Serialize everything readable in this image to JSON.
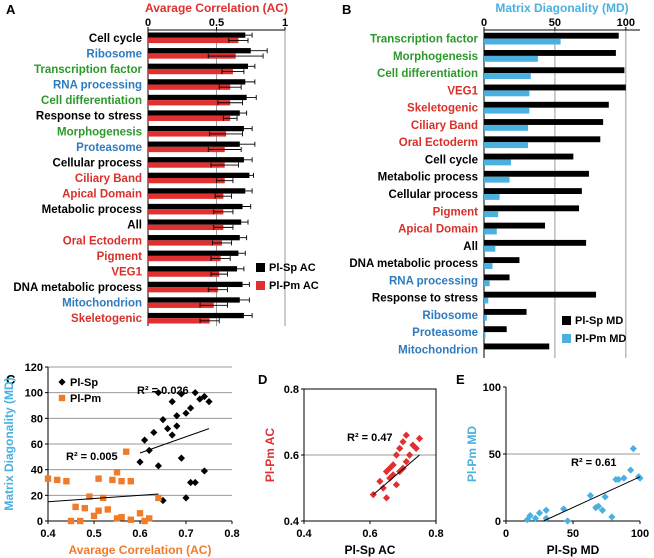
{
  "colors": {
    "black": "#000000",
    "red": "#e0302f",
    "blue": "#49b0e0",
    "orange": "#f07c2a",
    "green": "#2b9a2b",
    "catBlue": "#2e7bbf",
    "catRed": "#d9302a",
    "grid": "#9a9a9a"
  },
  "chart_data": [
    {
      "panel": "A",
      "type": "bar",
      "orientation": "horizontal",
      "xlabel": "Avarage Correlation (AC)",
      "xlim": [
        0,
        1
      ],
      "xticks": [
        "0",
        "0.5",
        "1"
      ],
      "categories": [
        "Cell cycle",
        "Ribosome",
        "Transcription factor",
        "RNA processing",
        "Cell differentiation",
        "Response to stress",
        "Morphogenesis",
        "Proteasome",
        "Cellular process",
        "Ciliary Band",
        "Apical Domain",
        "Metabolic process",
        "All",
        "Oral Ectoderm",
        "Pigment",
        "VEG1",
        "DNA metabolic process",
        "Mitochondrion",
        "Skeletogenic"
      ],
      "category_colors": [
        "black",
        "catBlue",
        "green",
        "catBlue",
        "green",
        "black",
        "green",
        "catBlue",
        "black",
        "catRed",
        "catRed",
        "black",
        "black",
        "catRed",
        "catRed",
        "catRed",
        "black",
        "catBlue",
        "catRed"
      ],
      "series": [
        {
          "name": "Pl-Sp AC",
          "color": "black",
          "values": [
            0.71,
            0.75,
            0.73,
            0.71,
            0.72,
            0.67,
            0.7,
            0.67,
            0.7,
            0.74,
            0.71,
            0.69,
            0.68,
            0.67,
            0.66,
            0.65,
            0.69,
            0.67,
            0.7
          ],
          "errors": [
            0.05,
            0.12,
            0.05,
            0.07,
            0.07,
            0.05,
            0.06,
            0.11,
            0.06,
            0.03,
            0.05,
            0.06,
            0.05,
            0.05,
            0.05,
            0.05,
            0.05,
            0.07,
            0.06
          ]
        },
        {
          "name": "Pl-Pm AC",
          "color": "red",
          "values": [
            0.66,
            0.64,
            0.62,
            0.6,
            0.6,
            0.6,
            0.57,
            0.56,
            0.56,
            0.56,
            0.55,
            0.55,
            0.55,
            0.54,
            0.53,
            0.52,
            0.51,
            0.48,
            0.45
          ],
          "errors": [
            0.07,
            0.2,
            0.08,
            0.08,
            0.09,
            0.05,
            0.12,
            0.12,
            0.1,
            0.06,
            0.06,
            0.07,
            0.07,
            0.07,
            0.07,
            0.06,
            0.07,
            0.1,
            0.07
          ]
        }
      ],
      "legend": "bottom-right"
    },
    {
      "panel": "B",
      "type": "bar",
      "orientation": "horizontal",
      "xlabel": "Matrix Diagonality (MD)",
      "xlim": [
        0,
        110
      ],
      "xticks": [
        "0",
        "50",
        "100"
      ],
      "categories": [
        "Transcription factor",
        "Morphogenesis",
        "Cell differentiation",
        "VEG1",
        "Skeletogenic",
        "Ciliary Band",
        "Oral Ectoderm",
        "Cell cycle",
        "Metabolic process",
        "Cellular process",
        "Pigment",
        "Apical Domain",
        "All",
        "DNA metabolic process",
        "RNA processing",
        "Response to stress",
        "Ribosome",
        "Proteasome",
        "Mitochondrion"
      ],
      "category_colors": [
        "green",
        "green",
        "green",
        "catRed",
        "catRed",
        "catRed",
        "catRed",
        "black",
        "black",
        "black",
        "catRed",
        "catRed",
        "black",
        "black",
        "catBlue",
        "black",
        "catBlue",
        "catBlue",
        "catBlue"
      ],
      "series": [
        {
          "name": "Pl-Sp MD",
          "color": "black",
          "values": [
            95,
            93,
            99,
            100,
            88,
            84,
            82,
            63,
            74,
            69,
            67,
            43,
            72,
            25,
            18,
            79,
            30,
            16,
            46
          ]
        },
        {
          "name": "Pl-Pm MD",
          "color": "blue",
          "values": [
            54,
            38,
            33,
            32,
            32,
            31,
            31,
            19,
            18,
            11,
            10,
            9,
            8,
            6,
            4,
            3,
            2,
            1,
            0
          ]
        }
      ],
      "legend": "bottom-right"
    },
    {
      "panel": "C",
      "type": "scatter",
      "xlabel": "Avarage Correlation (AC)",
      "ylabel": "Matrix Diagonality (MD)",
      "xlim": [
        0.4,
        0.8
      ],
      "ylim": [
        0,
        120
      ],
      "xticks": [
        "0.4",
        "0.5",
        "0.6",
        "0.7",
        "0.8"
      ],
      "yticks": [
        "0",
        "20",
        "40",
        "60",
        "80",
        "100",
        "120"
      ],
      "series": [
        {
          "name": "Pl-Sp",
          "color": "black",
          "marker": "diamond",
          "x": [
            0.64,
            0.65,
            0.67,
            0.68,
            0.69,
            0.7,
            0.71,
            0.72,
            0.73,
            0.74,
            0.75,
            0.6,
            0.61,
            0.62,
            0.63,
            0.64,
            0.66,
            0.67,
            0.68,
            0.69,
            0.7,
            0.71,
            0.72,
            0.74,
            0.65
          ],
          "y": [
            100,
            79,
            93,
            82,
            99,
            84,
            88,
            100,
            95,
            97,
            93,
            46,
            63,
            55,
            69,
            43,
            72,
            67,
            74,
            49,
            18,
            30,
            30,
            39,
            16
          ],
          "trend": {
            "x": [
              0.6,
              0.75
            ],
            "y": [
              53,
              72
            ]
          },
          "r2_label": "R² = 0.026"
        },
        {
          "name": "Pl-Pm",
          "color": "orange",
          "marker": "square",
          "x": [
            0.4,
            0.42,
            0.44,
            0.45,
            0.46,
            0.48,
            0.49,
            0.5,
            0.51,
            0.52,
            0.53,
            0.54,
            0.55,
            0.56,
            0.57,
            0.58,
            0.6,
            0.62,
            0.64,
            0.47,
            0.51,
            0.55,
            0.56,
            0.58,
            0.61
          ],
          "y": [
            33,
            32,
            31,
            0,
            11,
            10,
            19,
            4,
            8,
            18,
            9,
            32,
            38,
            3,
            54,
            1,
            6,
            2,
            18,
            0,
            33,
            2,
            31,
            31,
            0
          ],
          "trend": {
            "x": [
              0.4,
              0.64
            ],
            "y": [
              15,
              21
            ]
          },
          "r2_label": "R² = 0.005"
        }
      ],
      "legend": "top-left"
    },
    {
      "panel": "D",
      "type": "scatter",
      "xlabel": "Pl-Sp AC",
      "ylabel": "Pl-Pm AC",
      "xlim": [
        0.4,
        0.8
      ],
      "ylim": [
        0.4,
        0.8
      ],
      "xticks": [
        "0.4",
        "0.6",
        "0.8"
      ],
      "yticks": [
        "0.4",
        "0.6",
        "0.8"
      ],
      "series": [
        {
          "name": "",
          "color": "red",
          "marker": "diamond",
          "x": [
            0.61,
            0.63,
            0.64,
            0.65,
            0.66,
            0.66,
            0.67,
            0.67,
            0.68,
            0.68,
            0.69,
            0.69,
            0.7,
            0.7,
            0.71,
            0.71,
            0.72,
            0.73,
            0.74,
            0.75,
            0.65
          ],
          "y": [
            0.48,
            0.52,
            0.5,
            0.55,
            0.53,
            0.56,
            0.54,
            0.57,
            0.51,
            0.6,
            0.55,
            0.62,
            0.56,
            0.64,
            0.58,
            0.66,
            0.6,
            0.63,
            0.62,
            0.65,
            0.47
          ],
          "trend": {
            "x": [
              0.61,
              0.75
            ],
            "y": [
              0.48,
              0.6
            ]
          },
          "r2_label": "R² = 0.47"
        }
      ]
    },
    {
      "panel": "E",
      "type": "scatter",
      "xlabel": "Pl-Sp MD",
      "ylabel": "Pl-Pm MD",
      "xlim": [
        0,
        100
      ],
      "ylim": [
        0,
        100
      ],
      "xticks": [
        "0",
        "50",
        "100"
      ],
      "yticks": [
        "0",
        "50",
        "100"
      ],
      "series": [
        {
          "name": "",
          "color": "blue",
          "marker": "diamond",
          "x": [
            16,
            18,
            25,
            30,
            30,
            43,
            46,
            63,
            67,
            69,
            72,
            74,
            79,
            82,
            84,
            88,
            93,
            95,
            99,
            100,
            22
          ],
          "y": [
            1,
            4,
            6,
            2,
            8,
            9,
            0,
            19,
            10,
            11,
            8,
            18,
            3,
            31,
            31,
            32,
            38,
            54,
            33,
            32,
            2
          ],
          "trend": {
            "x": [
              28,
              100
            ],
            "y": [
              0,
              33
            ]
          },
          "r2_label": "R² = 0.61"
        }
      ]
    }
  ]
}
